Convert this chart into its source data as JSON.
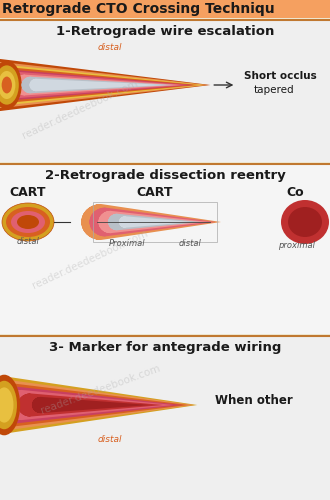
{
  "title": "Retrograde CTO Crossing Techniqu",
  "title_bg": "#F5A060",
  "bg_color": "#F0EAD6",
  "sec_bg": "#F5F0E8",
  "section1_title": "1-Retrograde wire escalation",
  "section1_text1": "Short occlus",
  "section1_text2": "tapered",
  "section1_label": "distal",
  "section2_title": "2-Retrograde dissection reentry",
  "section2_labels": [
    "CART",
    "CART",
    "Co"
  ],
  "section2_sub1": "distal",
  "section2_sub2a": "Proximal",
  "section2_sub2b": "distal",
  "section2_sub3": "proximal",
  "section3_title": "3- Marker for antegrade wiring",
  "section3_text": "When other",
  "section3_label": "distal",
  "colors": {
    "orange_dark": "#C04808",
    "orange_mid": "#D86020",
    "orange_light": "#E89050",
    "orange_pale": "#F0B870",
    "yellow_gold": "#D4A020",
    "yellow": "#E8C040",
    "yellow_light": "#F0D060",
    "pink_dark": "#C84060",
    "pink": "#E06070",
    "pink_light": "#F09090",
    "pink_pale": "#F8B8A8",
    "red_dark": "#A02020",
    "red": "#C03030",
    "gray_dark": "#707880",
    "gray": "#9098A0",
    "gray_light": "#B8C0C8",
    "gray_pale": "#D0D8E0",
    "divider": "#C07830",
    "text_dark": "#1A1A1A",
    "watermark": "#B0B0B0"
  }
}
